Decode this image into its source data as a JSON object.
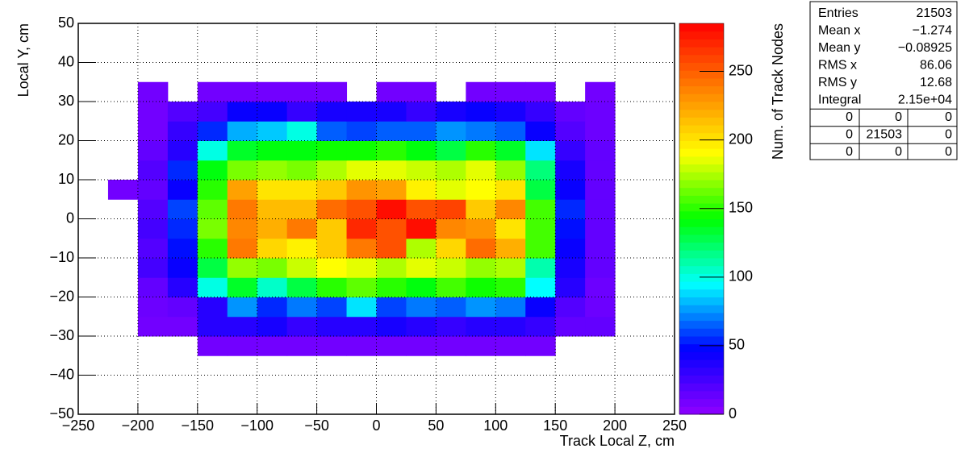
{
  "chart_data": {
    "type": "heatmap",
    "x_label": "Track Local Z, cm",
    "y_label": "Local Y, cm",
    "z_label": "Num. of Track Nodes",
    "x_bins": [
      -225,
      -200,
      -175,
      -150,
      -125,
      -100,
      -75,
      -50,
      -25,
      0,
      25,
      50,
      75,
      100,
      125,
      150,
      175,
      200
    ],
    "y_bins": [
      -35,
      -30,
      -25,
      -20,
      -15,
      -10,
      -5,
      0,
      5,
      10,
      15,
      20,
      25,
      30,
      35
    ],
    "z": [
      [
        null,
        null,
        null,
        10,
        10,
        10,
        10,
        10,
        10,
        10,
        10,
        10,
        10,
        10,
        10,
        null,
        null
      ],
      [
        null,
        10,
        10,
        35,
        35,
        40,
        30,
        35,
        35,
        40,
        35,
        30,
        35,
        35,
        30,
        15,
        15
      ],
      [
        null,
        12,
        15,
        35,
        75,
        55,
        70,
        60,
        90,
        60,
        70,
        65,
        75,
        70,
        45,
        20,
        12
      ],
      [
        null,
        15,
        35,
        100,
        135,
        105,
        130,
        150,
        160,
        150,
        140,
        155,
        145,
        150,
        95,
        35,
        12
      ],
      [
        null,
        25,
        45,
        130,
        170,
        165,
        180,
        190,
        185,
        175,
        185,
        180,
        170,
        175,
        110,
        40,
        15
      ],
      [
        null,
        20,
        50,
        150,
        240,
        205,
        195,
        210,
        240,
        255,
        175,
        205,
        245,
        220,
        155,
        45,
        15
      ],
      [
        null,
        25,
        55,
        165,
        235,
        220,
        240,
        210,
        270,
        255,
        280,
        235,
        230,
        200,
        155,
        50,
        15
      ],
      [
        null,
        20,
        60,
        160,
        240,
        215,
        215,
        245,
        255,
        280,
        255,
        260,
        210,
        235,
        155,
        55,
        15
      ],
      [
        10,
        15,
        45,
        150,
        225,
        200,
        200,
        210,
        230,
        225,
        195,
        185,
        190,
        200,
        130,
        45,
        15
      ],
      [
        null,
        20,
        55,
        140,
        165,
        170,
        165,
        175,
        185,
        185,
        180,
        175,
        185,
        170,
        120,
        40,
        15
      ],
      [
        null,
        15,
        35,
        100,
        135,
        140,
        140,
        145,
        145,
        150,
        140,
        130,
        150,
        135,
        90,
        30,
        15
      ],
      [
        null,
        10,
        30,
        55,
        80,
        85,
        100,
        65,
        60,
        65,
        65,
        75,
        70,
        65,
        45,
        20,
        12
      ],
      [
        null,
        10,
        20,
        25,
        45,
        45,
        30,
        40,
        40,
        40,
        30,
        40,
        45,
        40,
        30,
        15,
        12
      ],
      [
        null,
        10,
        null,
        10,
        10,
        10,
        10,
        10,
        null,
        10,
        10,
        null,
        10,
        10,
        10,
        null,
        10
      ]
    ],
    "xlim": [
      -250,
      250
    ],
    "ylim": [
      -50,
      50
    ],
    "zlim": [
      0,
      285
    ],
    "xticks": [
      {
        "value": -250,
        "label": "−250"
      },
      {
        "value": -200,
        "label": "−200"
      },
      {
        "value": -150,
        "label": "−150"
      },
      {
        "value": -100,
        "label": "−100"
      },
      {
        "value": -50,
        "label": "−50"
      },
      0,
      50,
      100,
      150,
      200,
      250
    ],
    "yticks": [
      {
        "value": -50,
        "label": "−50"
      },
      {
        "value": -40,
        "label": "−40"
      },
      {
        "value": -30,
        "label": "−30"
      },
      {
        "value": -20,
        "label": "−20"
      },
      {
        "value": -10,
        "label": "−10"
      },
      0,
      10,
      20,
      30,
      40,
      50
    ],
    "zticks": [
      0,
      50,
      100,
      150,
      200,
      250
    ],
    "grid": true,
    "colors": [
      "#9000ff",
      "#0000ff",
      "#00ffff",
      "#00ff00",
      "#ffff00",
      "#ff8000",
      "#ff0000"
    ],
    "stats_box": {
      "rows": [
        [
          "Entries",
          "21503"
        ],
        [
          "Mean x",
          "−1.274"
        ],
        [
          "Mean y",
          "−0.08925"
        ],
        [
          "RMS x",
          "86.06"
        ],
        [
          "RMS y",
          "12.68"
        ],
        [
          "Integral",
          "2.15e+04"
        ]
      ],
      "grid": [
        [
          "0",
          "0",
          "0"
        ],
        [
          "0",
          "21503",
          "0"
        ],
        [
          "0",
          "0",
          "0"
        ]
      ]
    }
  }
}
